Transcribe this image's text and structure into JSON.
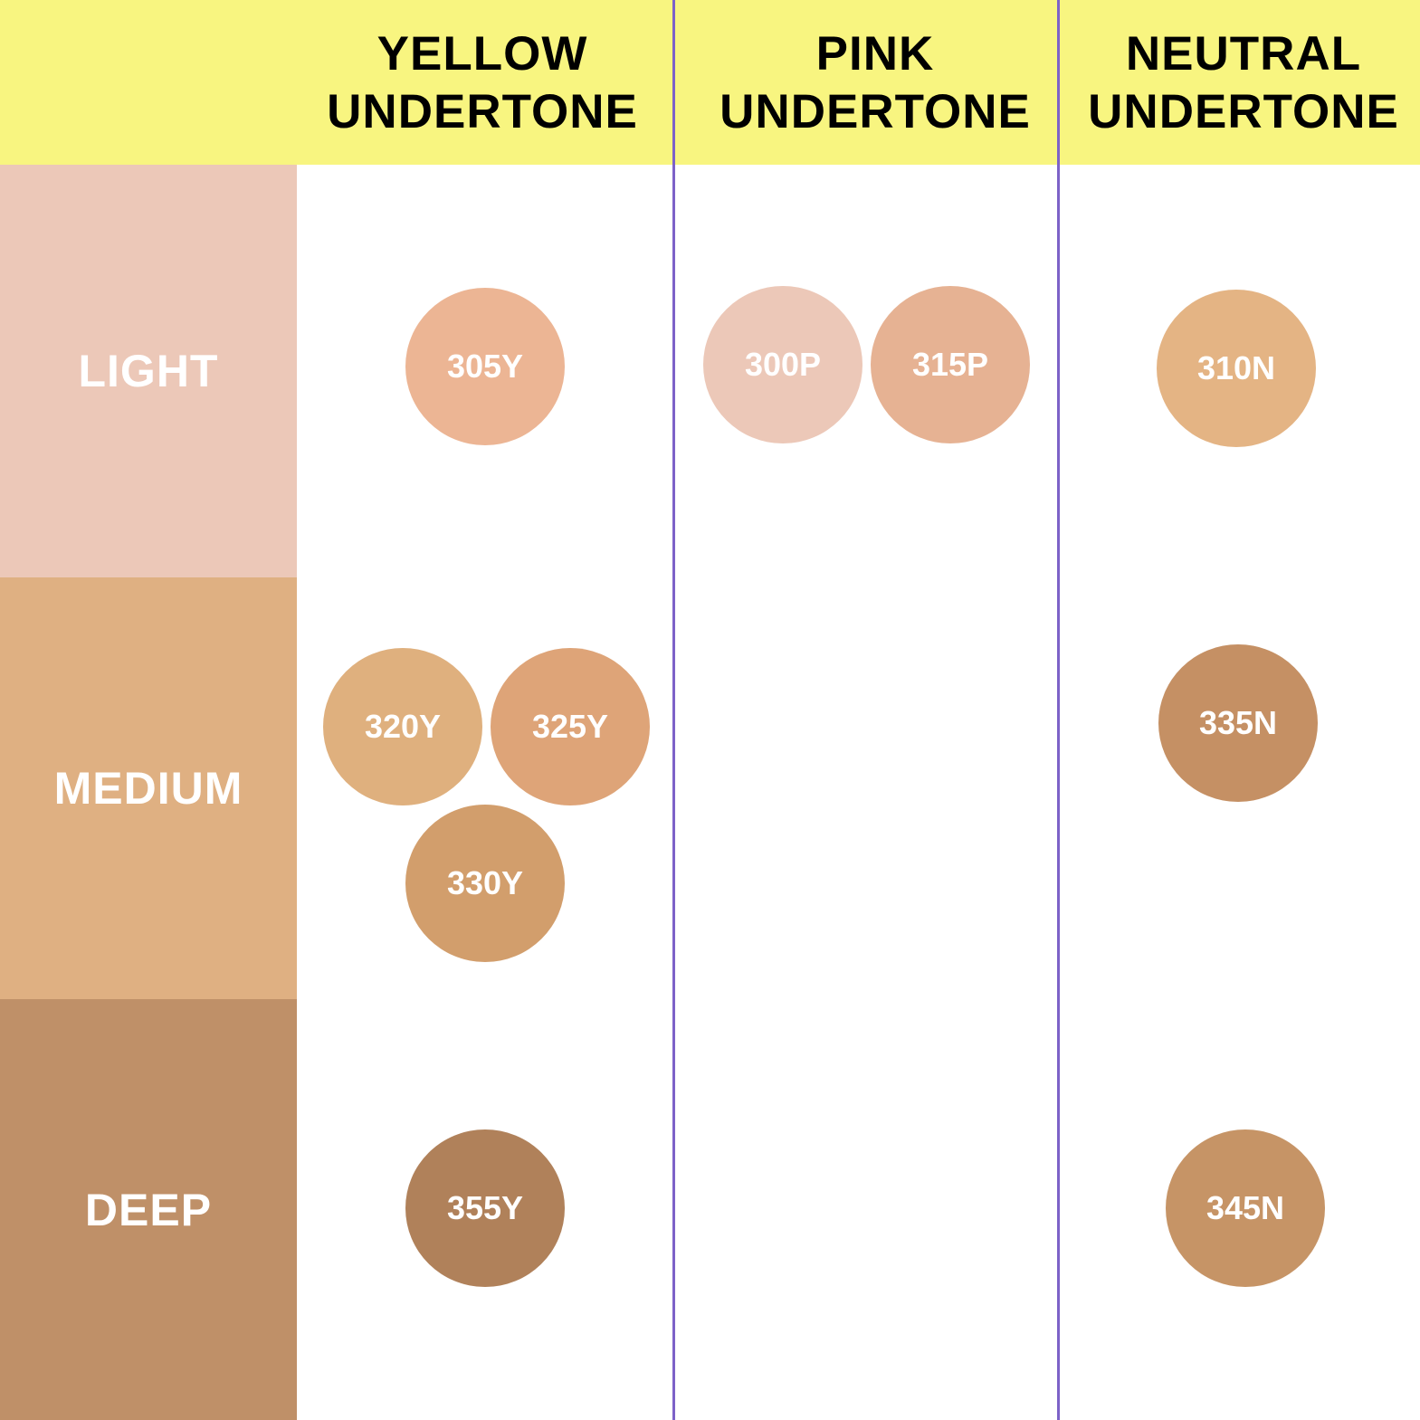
{
  "columns": [
    {
      "title_line1": "YELLOW",
      "title_line2": "UNDERTONE"
    },
    {
      "title_line1": "PINK",
      "title_line2": "UNDERTONE"
    },
    {
      "title_line1": "NEUTRAL",
      "title_line2": "UNDERTONE"
    }
  ],
  "rows": [
    {
      "label": "LIGHT",
      "color": "#ecc8b8"
    },
    {
      "label": "MEDIUM",
      "color": "#dfb082"
    },
    {
      "label": "DEEP",
      "color": "#bf9068"
    }
  ],
  "colors": {
    "header": "#f8f580",
    "divider": "#7d62c8"
  },
  "shades": [
    {
      "code": "305Y",
      "undertone": "YELLOW",
      "depth": "LIGHT",
      "color": "#ecb594"
    },
    {
      "code": "300P",
      "undertone": "PINK",
      "depth": "LIGHT",
      "color": "#ecc8b8"
    },
    {
      "code": "315P",
      "undertone": "PINK",
      "depth": "LIGHT",
      "color": "#e6b293"
    },
    {
      "code": "310N",
      "undertone": "NEUTRAL",
      "depth": "LIGHT",
      "color": "#e4b484"
    },
    {
      "code": "320Y",
      "undertone": "YELLOW",
      "depth": "MEDIUM",
      "color": "#dfb07e"
    },
    {
      "code": "325Y",
      "undertone": "YELLOW",
      "depth": "MEDIUM",
      "color": "#dea478"
    },
    {
      "code": "330Y",
      "undertone": "YELLOW",
      "depth": "MEDIUM",
      "color": "#d29e6c"
    },
    {
      "code": "335N",
      "undertone": "NEUTRAL",
      "depth": "MEDIUM",
      "color": "#c59064"
    },
    {
      "code": "355Y",
      "undertone": "YELLOW",
      "depth": "DEEP",
      "color": "#b0815a"
    },
    {
      "code": "345N",
      "undertone": "NEUTRAL",
      "depth": "DEEP",
      "color": "#c69466"
    }
  ]
}
